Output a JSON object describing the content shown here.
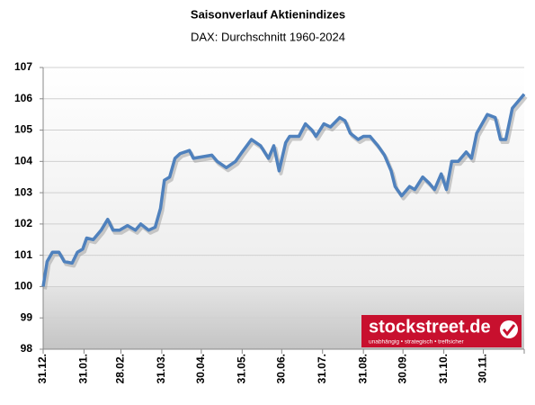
{
  "chart_data": {
    "type": "line",
    "title": "Saisonverlauf Aktienindizes",
    "subtitle": "DAX: Durchschnitt 1960-2024",
    "x": [
      0,
      3,
      7,
      12,
      16,
      22,
      26,
      30,
      33,
      38,
      44,
      49,
      53,
      58,
      64,
      70,
      74,
      80,
      85,
      89,
      92,
      96,
      100,
      104,
      111,
      114,
      121,
      128,
      132,
      139,
      146,
      151,
      158,
      165,
      171,
      175,
      179,
      184,
      187,
      194,
      199,
      204,
      207,
      213,
      218,
      225,
      229,
      233,
      239,
      243,
      248,
      254,
      259,
      264,
      267,
      272,
      278,
      282,
      288,
      293,
      297,
      302,
      306,
      310,
      315,
      321,
      325,
      329,
      333,
      337,
      343,
      347,
      351,
      356,
      360,
      365
    ],
    "series": [
      {
        "name": "DAX",
        "color": "#4f81bd",
        "values": [
          100.0,
          100.8,
          101.1,
          101.1,
          100.8,
          100.75,
          101.1,
          101.2,
          101.55,
          101.5,
          101.8,
          102.15,
          101.8,
          101.8,
          101.95,
          101.8,
          102.0,
          101.8,
          101.9,
          102.5,
          103.4,
          103.5,
          104.1,
          104.25,
          104.35,
          104.1,
          104.15,
          104.2,
          104.0,
          103.8,
          104.0,
          104.3,
          104.7,
          104.5,
          104.1,
          104.5,
          103.7,
          104.6,
          104.8,
          104.8,
          105.2,
          105.0,
          104.8,
          105.2,
          105.1,
          105.4,
          105.3,
          104.9,
          104.7,
          104.8,
          104.8,
          104.5,
          104.2,
          103.7,
          103.2,
          102.9,
          103.2,
          103.1,
          103.5,
          103.3,
          103.1,
          103.6,
          103.1,
          104.0,
          104.0,
          104.3,
          104.1,
          104.9,
          105.2,
          105.5,
          105.4,
          104.7,
          104.7,
          105.7,
          105.9,
          106.15
        ]
      }
    ],
    "xlim": [
      0,
      365
    ],
    "xticks": [
      {
        "value": 0,
        "label": "31.12."
      },
      {
        "value": 31,
        "label": "31.01."
      },
      {
        "value": 59,
        "label": "28.02."
      },
      {
        "value": 90,
        "label": "31.03."
      },
      {
        "value": 120,
        "label": "30.04."
      },
      {
        "value": 151,
        "label": "31.05."
      },
      {
        "value": 181,
        "label": "30.06."
      },
      {
        "value": 212,
        "label": "31.07."
      },
      {
        "value": 243,
        "label": "31.08."
      },
      {
        "value": 273,
        "label": "30.09."
      },
      {
        "value": 304,
        "label": "31.10."
      },
      {
        "value": 334,
        "label": "30.11."
      }
    ],
    "ylim": [
      98,
      107
    ],
    "yticks": [
      98,
      99,
      100,
      101,
      102,
      103,
      104,
      105,
      106,
      107
    ],
    "grid": true,
    "watermark": {
      "text": "stockstreet.de",
      "tagline": "unabhängig • strategisch • treffsicher"
    }
  }
}
